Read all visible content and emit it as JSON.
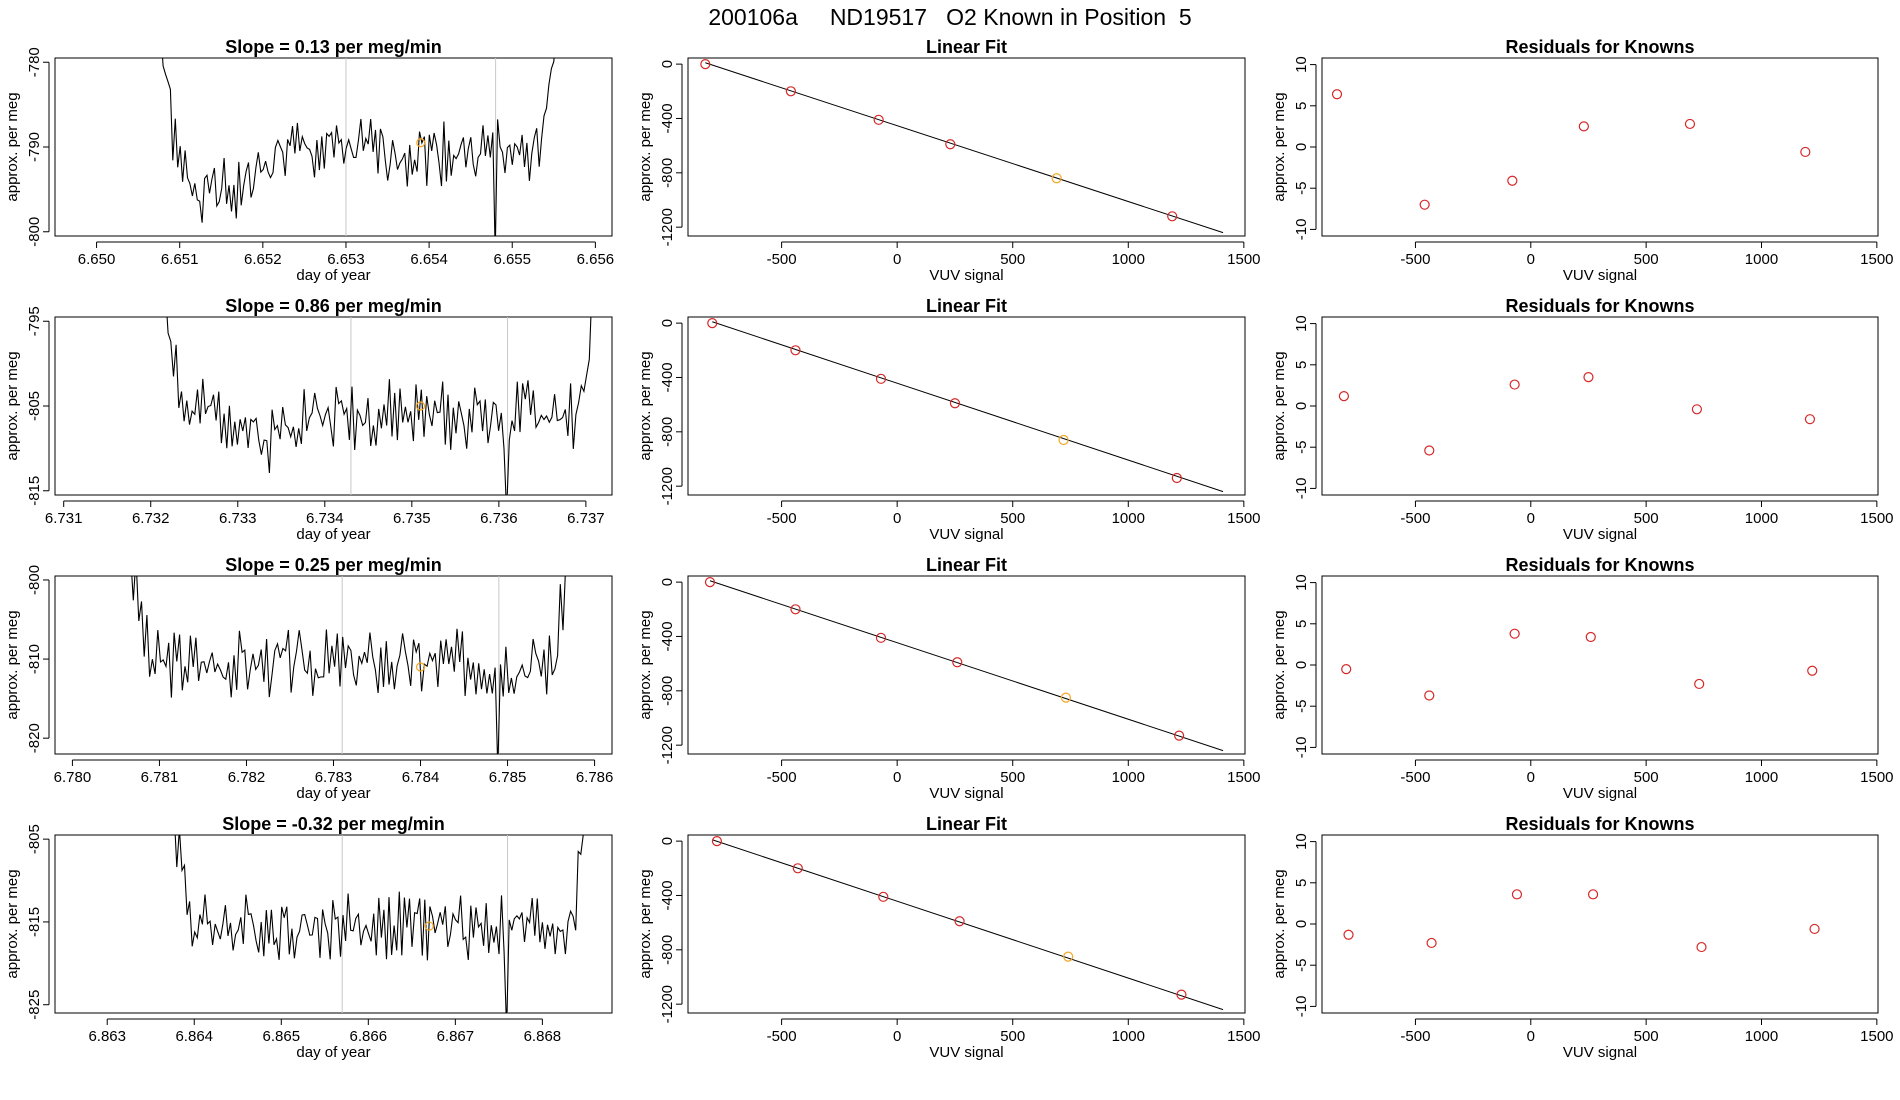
{
  "page": {
    "title": "200106a     ND19517   O2 Known in Position  5"
  },
  "colors": {
    "line": "#000000",
    "known": "#d62728",
    "sample": "#f5a623",
    "marker": "#c8c8c8",
    "axis": "#000000"
  },
  "chart_data": [
    {
      "type": "line",
      "row": 0,
      "kind": "trace",
      "title": "Slope =  0.13  per meg/min",
      "xlabel": "day of year",
      "ylabel": "approx. per meg",
      "xlim": [
        6.6495,
        6.6562
      ],
      "ylim": [
        -800.5,
        -779.5
      ],
      "xticks": [
        6.65,
        6.651,
        6.652,
        6.653,
        6.654,
        6.655,
        6.656
      ],
      "xtick_labels": [
        "6.650",
        "6.651",
        "6.652",
        "6.653",
        "6.654",
        "6.655",
        "6.656"
      ],
      "yticks": [
        -800,
        -790,
        -780
      ],
      "ytick_labels": [
        "-800",
        "-790",
        "-780"
      ],
      "vlines": [
        6.653,
        6.6548
      ],
      "x_start": 6.6508,
      "x_end": 6.6555,
      "base": -790.5,
      "amp": 3.0,
      "dip_start": 6.6508,
      "dip_end": 6.6522,
      "dip_depth": 5.0,
      "seed": 1,
      "sample_point": {
        "x": 6.6539,
        "y": -789.5
      }
    },
    {
      "type": "scatter",
      "row": 0,
      "kind": "fit",
      "title": "Linear Fit",
      "xlabel": "VUV signal",
      "ylabel": "approx. per meg",
      "xlim": [
        -905,
        1505
      ],
      "ylim": [
        -1265,
        45
      ],
      "xticks": [
        -500,
        0,
        500,
        1000,
        1500
      ],
      "xtick_labels": [
        "-500",
        "0",
        "500",
        "1000",
        "1500"
      ],
      "yticks": [
        -1200,
        -800,
        -400,
        0
      ],
      "ytick_labels": [
        "-1200",
        "-800",
        "-400",
        "0"
      ],
      "fit_line": {
        "x": [
          -830,
          1410
        ],
        "y": [
          10,
          -1240
        ]
      },
      "points": [
        {
          "x": -830,
          "y": 0,
          "kind": "known"
        },
        {
          "x": -460,
          "y": -200,
          "kind": "known"
        },
        {
          "x": -80,
          "y": -410,
          "kind": "known"
        },
        {
          "x": 230,
          "y": -590,
          "kind": "known"
        },
        {
          "x": 690,
          "y": -840,
          "kind": "sample"
        },
        {
          "x": 1190,
          "y": -1120,
          "kind": "known"
        }
      ]
    },
    {
      "type": "scatter",
      "row": 0,
      "kind": "resid",
      "title": "Residuals for Knowns",
      "xlabel": "VUV signal",
      "ylabel": "approx. per meg",
      "xlim": [
        -905,
        1505
      ],
      "ylim": [
        -10.8,
        10.8
      ],
      "xticks": [
        -500,
        0,
        500,
        1000,
        1500
      ],
      "xtick_labels": [
        "-500",
        "0",
        "500",
        "1000",
        "1500"
      ],
      "yticks": [
        -10,
        -5,
        0,
        5,
        10
      ],
      "ytick_labels": [
        "-10",
        "-5",
        "0",
        "5",
        "10"
      ],
      "points": [
        {
          "x": -840,
          "y": 6.4
        },
        {
          "x": -460,
          "y": -7.0
        },
        {
          "x": -80,
          "y": -4.1
        },
        {
          "x": 230,
          "y": 2.5
        },
        {
          "x": 690,
          "y": 2.8
        },
        {
          "x": 1190,
          "y": -0.6
        }
      ]
    },
    {
      "type": "line",
      "row": 1,
      "kind": "trace",
      "title": "Slope =  0.86  per meg/min",
      "xlabel": "day of year",
      "ylabel": "approx. per meg",
      "xlim": [
        6.7309,
        6.7373
      ],
      "ylim": [
        -815.5,
        -794.5
      ],
      "xticks": [
        6.731,
        6.732,
        6.733,
        6.734,
        6.735,
        6.736,
        6.737
      ],
      "xtick_labels": [
        "6.731",
        "6.732",
        "6.733",
        "6.734",
        "6.735",
        "6.736",
        "6.737"
      ],
      "yticks": [
        -815,
        -805,
        -795
      ],
      "ytick_labels": [
        "-815",
        "-805",
        "-795"
      ],
      "vlines": [
        6.7343,
        6.7361
      ],
      "x_start": 6.7322,
      "x_end": 6.7371,
      "base": -806.0,
      "amp": 3.0,
      "dip_start": 6.733,
      "dip_end": 6.7336,
      "dip_depth": 3.0,
      "seed": 2,
      "sample_point": {
        "x": 6.7351,
        "y": -805.0
      }
    },
    {
      "type": "scatter",
      "row": 1,
      "kind": "fit",
      "title": "Linear Fit",
      "xlabel": "VUV signal",
      "ylabel": "approx. per meg",
      "xlim": [
        -905,
        1505
      ],
      "ylim": [
        -1265,
        45
      ],
      "xticks": [
        -500,
        0,
        500,
        1000,
        1500
      ],
      "xtick_labels": [
        "-500",
        "0",
        "500",
        "1000",
        "1500"
      ],
      "yticks": [
        -1200,
        -800,
        -400,
        0
      ],
      "ytick_labels": [
        "-1200",
        "-800",
        "-400",
        "0"
      ],
      "fit_line": {
        "x": [
          -800,
          1410
        ],
        "y": [
          10,
          -1240
        ]
      },
      "points": [
        {
          "x": -800,
          "y": 0,
          "kind": "known"
        },
        {
          "x": -440,
          "y": -200,
          "kind": "known"
        },
        {
          "x": -70,
          "y": -410,
          "kind": "known"
        },
        {
          "x": 250,
          "y": -590,
          "kind": "known"
        },
        {
          "x": 720,
          "y": -860,
          "kind": "sample"
        },
        {
          "x": 1210,
          "y": -1140,
          "kind": "known"
        }
      ]
    },
    {
      "type": "scatter",
      "row": 1,
      "kind": "resid",
      "title": "Residuals for Knowns",
      "xlabel": "VUV signal",
      "ylabel": "approx. per meg",
      "xlim": [
        -905,
        1505
      ],
      "ylim": [
        -10.8,
        10.8
      ],
      "xticks": [
        -500,
        0,
        500,
        1000,
        1500
      ],
      "xtick_labels": [
        "-500",
        "0",
        "500",
        "1000",
        "1500"
      ],
      "yticks": [
        -10,
        -5,
        0,
        5,
        10
      ],
      "ytick_labels": [
        "-10",
        "-5",
        "0",
        "5",
        "10"
      ],
      "points": [
        {
          "x": -810,
          "y": 1.2
        },
        {
          "x": -440,
          "y": -5.4
        },
        {
          "x": -70,
          "y": 2.6
        },
        {
          "x": 250,
          "y": 3.5
        },
        {
          "x": 720,
          "y": -0.4
        },
        {
          "x": 1210,
          "y": -1.6
        }
      ]
    },
    {
      "type": "line",
      "row": 2,
      "kind": "trace",
      "title": "Slope =  0.25  per meg/min",
      "xlabel": "day of year",
      "ylabel": "approx. per meg",
      "xlim": [
        6.7798,
        6.7862
      ],
      "ylim": [
        -822,
        -799.5
      ],
      "xticks": [
        6.78,
        6.781,
        6.782,
        6.783,
        6.784,
        6.785,
        6.786
      ],
      "xtick_labels": [
        "6.780",
        "6.781",
        "6.782",
        "6.783",
        "6.784",
        "6.785",
        "6.786"
      ],
      "yticks": [
        -820,
        -810,
        -800
      ],
      "ytick_labels": [
        "-820",
        "-810",
        "-800"
      ],
      "vlines": [
        6.7831,
        6.7849
      ],
      "x_start": 6.7807,
      "x_end": 6.7857,
      "base": -810.5,
      "amp": 3.2,
      "dip_start": 6.7807,
      "dip_end": 6.7808,
      "dip_depth": 0.0,
      "seed": 3,
      "sample_point": {
        "x": 6.784,
        "y": -811.0
      }
    },
    {
      "type": "scatter",
      "row": 2,
      "kind": "fit",
      "title": "Linear Fit",
      "xlabel": "VUV signal",
      "ylabel": "approx. per meg",
      "xlim": [
        -905,
        1505
      ],
      "ylim": [
        -1265,
        45
      ],
      "xticks": [
        -500,
        0,
        500,
        1000,
        1500
      ],
      "xtick_labels": [
        "-500",
        "0",
        "500",
        "1000",
        "1500"
      ],
      "yticks": [
        -1200,
        -800,
        -400,
        0
      ],
      "ytick_labels": [
        "-1200",
        "-800",
        "-400",
        "0"
      ],
      "fit_line": {
        "x": [
          -810,
          1410
        ],
        "y": [
          10,
          -1240
        ]
      },
      "points": [
        {
          "x": -810,
          "y": 0,
          "kind": "known"
        },
        {
          "x": -440,
          "y": -200,
          "kind": "known"
        },
        {
          "x": -70,
          "y": -410,
          "kind": "known"
        },
        {
          "x": 260,
          "y": -590,
          "kind": "known"
        },
        {
          "x": 730,
          "y": -850,
          "kind": "sample"
        },
        {
          "x": 1220,
          "y": -1130,
          "kind": "known"
        }
      ]
    },
    {
      "type": "scatter",
      "row": 2,
      "kind": "resid",
      "title": "Residuals for Knowns",
      "xlabel": "VUV signal",
      "ylabel": "approx. per meg",
      "xlim": [
        -905,
        1505
      ],
      "ylim": [
        -10.8,
        10.8
      ],
      "xticks": [
        -500,
        0,
        500,
        1000,
        1500
      ],
      "xtick_labels": [
        "-500",
        "0",
        "500",
        "1000",
        "1500"
      ],
      "yticks": [
        -10,
        -5,
        0,
        5,
        10
      ],
      "ytick_labels": [
        "-10",
        "-5",
        "0",
        "5",
        "10"
      ],
      "points": [
        {
          "x": -800,
          "y": -0.5
        },
        {
          "x": -440,
          "y": -3.7
        },
        {
          "x": -70,
          "y": 3.8
        },
        {
          "x": 260,
          "y": 3.4
        },
        {
          "x": 730,
          "y": -2.3
        },
        {
          "x": 1220,
          "y": -0.7
        }
      ]
    },
    {
      "type": "line",
      "row": 3,
      "kind": "trace",
      "title": "Slope =  -0.32  per meg/min",
      "xlabel": "day of year",
      "ylabel": "approx. per meg",
      "xlim": [
        6.8624,
        6.8688
      ],
      "ylim": [
        -826,
        -804.5
      ],
      "xticks": [
        6.863,
        6.864,
        6.865,
        6.866,
        6.867,
        6.868
      ],
      "xtick_labels": [
        "6.863",
        "6.864",
        "6.865",
        "6.866",
        "6.867",
        "6.868"
      ],
      "yticks": [
        -825,
        -815,
        -805
      ],
      "ytick_labels": [
        "-825",
        "-815",
        "-805"
      ],
      "vlines": [
        6.8657,
        6.8676
      ],
      "x_start": 6.8638,
      "x_end": 6.8685,
      "base": -815.5,
      "amp": 3.0,
      "dip_start": 6.864,
      "dip_end": 6.8641,
      "dip_depth": 0.0,
      "seed": 4,
      "sample_point": {
        "x": 6.8667,
        "y": -815.5
      }
    },
    {
      "type": "scatter",
      "row": 3,
      "kind": "fit",
      "title": "Linear Fit",
      "xlabel": "VUV signal",
      "ylabel": "approx. per meg",
      "xlim": [
        -905,
        1505
      ],
      "ylim": [
        -1265,
        45
      ],
      "xticks": [
        -500,
        0,
        500,
        1000,
        1500
      ],
      "xtick_labels": [
        "-500",
        "0",
        "500",
        "1000",
        "1500"
      ],
      "yticks": [
        -1200,
        -800,
        -400,
        0
      ],
      "ytick_labels": [
        "-1200",
        "-800",
        "-400",
        "0"
      ],
      "fit_line": {
        "x": [
          -800,
          1410
        ],
        "y": [
          10,
          -1240
        ]
      },
      "points": [
        {
          "x": -780,
          "y": 0,
          "kind": "known"
        },
        {
          "x": -430,
          "y": -200,
          "kind": "known"
        },
        {
          "x": -60,
          "y": -410,
          "kind": "known"
        },
        {
          "x": 270,
          "y": -590,
          "kind": "known"
        },
        {
          "x": 740,
          "y": -850,
          "kind": "sample"
        },
        {
          "x": 1230,
          "y": -1130,
          "kind": "known"
        }
      ]
    },
    {
      "type": "scatter",
      "row": 3,
      "kind": "resid",
      "title": "Residuals for Knowns",
      "xlabel": "VUV signal",
      "ylabel": "approx. per meg",
      "xlim": [
        -905,
        1505
      ],
      "ylim": [
        -10.8,
        10.8
      ],
      "xticks": [
        -500,
        0,
        500,
        1000,
        1500
      ],
      "xtick_labels": [
        "-500",
        "0",
        "500",
        "1000",
        "1500"
      ],
      "yticks": [
        -10,
        -5,
        0,
        5,
        10
      ],
      "ytick_labels": [
        "-10",
        "-5",
        "0",
        "5",
        "10"
      ],
      "points": [
        {
          "x": -790,
          "y": -1.3
        },
        {
          "x": -430,
          "y": -2.3
        },
        {
          "x": -60,
          "y": 3.6
        },
        {
          "x": 270,
          "y": 3.6
        },
        {
          "x": 740,
          "y": -2.8
        },
        {
          "x": 1230,
          "y": -0.6
        }
      ]
    }
  ]
}
